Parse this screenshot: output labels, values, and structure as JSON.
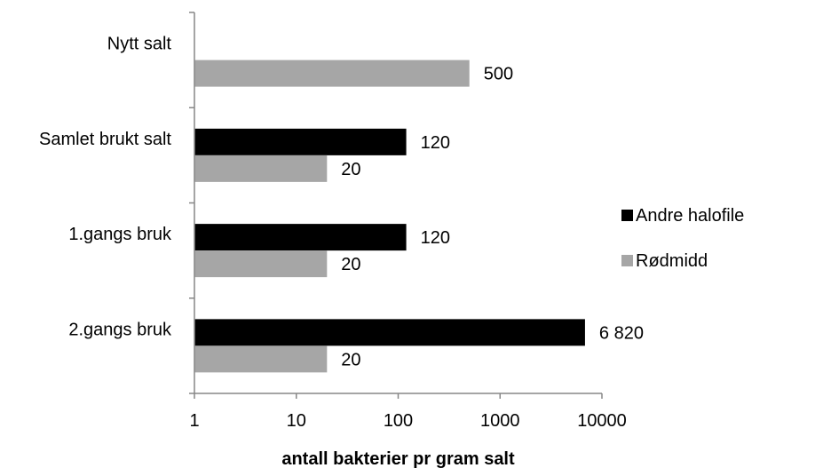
{
  "chart_data": {
    "type": "bar",
    "orientation": "horizontal",
    "x_scale": "log",
    "xlim": [
      1,
      10000
    ],
    "xticks": [
      "1",
      "10",
      "100",
      "1000",
      "10000"
    ],
    "xlabel": "antall bakterier pr gram salt",
    "ylabel": "",
    "title": "",
    "categories": [
      "2.gangs bruk",
      "1.gangs bruk",
      "Samlet brukt salt",
      "Nytt salt"
    ],
    "series": [
      {
        "name": "Andre halofile",
        "color": "#000000",
        "values": [
          6820,
          120,
          120,
          null
        ],
        "labels": [
          "6 820",
          "120",
          "120",
          ""
        ]
      },
      {
        "name": "Rødmidd",
        "color": "#a6a6a6",
        "values": [
          20,
          20,
          20,
          500
        ],
        "labels": [
          "20",
          "20",
          "20",
          "500"
        ]
      }
    ],
    "legend": "right",
    "grid": false
  }
}
